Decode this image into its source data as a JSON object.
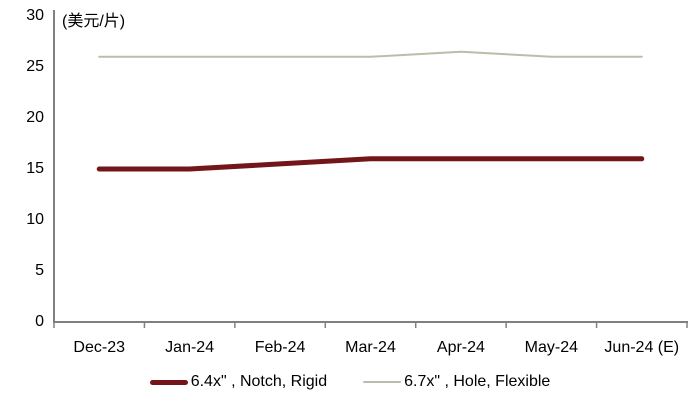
{
  "chart_data": {
    "type": "line",
    "unit_label": "(美元/片)",
    "categories": [
      "Dec-23",
      "Jan-24",
      "Feb-24",
      "Mar-24",
      "Apr-24",
      "May-24",
      "Jun-24 (E)"
    ],
    "series": [
      {
        "name": "6.4x\" , Notch, Rigid",
        "color": "#731619",
        "stroke_width": 5,
        "values": [
          15,
          15,
          15.5,
          16,
          16,
          16,
          16
        ]
      },
      {
        "name": "6.7x\" , Hole, Flexible",
        "color": "#BDBCAB",
        "stroke_width": 2,
        "values": [
          26,
          26,
          26,
          26,
          26.5,
          26,
          26
        ]
      }
    ],
    "y_axis": {
      "min": 0,
      "max": 30,
      "step": 5,
      "ticks": [
        0,
        5,
        10,
        15,
        20,
        25,
        30
      ]
    },
    "axis_color": "#808080",
    "text_color": "#000000",
    "legend_position": "bottom",
    "grid": false
  }
}
